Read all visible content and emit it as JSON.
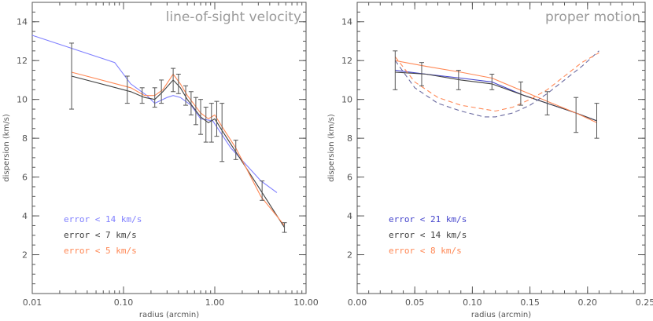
{
  "chart_data": [
    {
      "type": "line",
      "title": "line-of-sight velocity",
      "xlabel": "radius (arcmin)",
      "ylabel": "dispersion (km/s)",
      "xscale": "log",
      "xlim": [
        0.01,
        10.0
      ],
      "ylim": [
        0,
        15
      ],
      "xticks": [
        0.01,
        0.1,
        1.0,
        10.0
      ],
      "xtick_labels": [
        "0.01",
        "0.10",
        "1.00",
        "10.00"
      ],
      "yticks": [
        2,
        4,
        6,
        8,
        10,
        12,
        14
      ],
      "ytick_labels": [
        "2",
        "4",
        "6",
        "8",
        "10",
        "12",
        "14"
      ],
      "legend_position": "bottom-left",
      "series": [
        {
          "name": "error < 14 km/s",
          "color": "#7f7fff",
          "dash": false,
          "x": [
            0.01,
            0.08,
            0.12,
            0.18,
            0.22,
            0.3,
            0.35,
            0.42,
            0.55,
            0.7,
            0.95,
            1.5,
            3.2,
            4.8
          ],
          "y": [
            13.3,
            11.9,
            10.8,
            10.2,
            9.8,
            10.1,
            10.2,
            10.1,
            9.7,
            9.0,
            8.9,
            7.5,
            5.8,
            5.2
          ]
        },
        {
          "name": "error <  7 km/s",
          "color": "#404040",
          "dash": false,
          "x": [
            0.027,
            0.12,
            0.17,
            0.22,
            0.27,
            0.35,
            0.42,
            0.5,
            0.58,
            0.7,
            0.85,
            1.0,
            1.2,
            1.7,
            3.2,
            5.8
          ],
          "y": [
            11.2,
            10.4,
            10.1,
            10.0,
            10.4,
            11.0,
            10.6,
            10.0,
            9.6,
            9.1,
            8.8,
            9.0,
            8.4,
            7.3,
            5.3,
            3.4
          ]
        },
        {
          "name": "error <  5 km/s",
          "color": "#ff8855",
          "dash": false,
          "x": [
            0.027,
            0.12,
            0.17,
            0.22,
            0.27,
            0.35,
            0.42,
            0.5,
            0.58,
            0.7,
            0.85,
            1.0,
            1.2,
            1.7,
            3.2,
            5.8
          ],
          "y": [
            11.4,
            10.6,
            10.2,
            10.2,
            10.5,
            11.3,
            10.8,
            10.2,
            9.8,
            9.3,
            9.0,
            9.2,
            8.6,
            7.5,
            5.0,
            3.5
          ]
        }
      ],
      "error_bars": {
        "x": [
          0.027,
          0.11,
          0.16,
          0.22,
          0.26,
          0.35,
          0.4,
          0.48,
          0.55,
          0.62,
          0.7,
          0.8,
          0.92,
          1.05,
          1.2,
          1.7,
          3.3,
          5.8
        ],
        "y": [
          11.2,
          10.5,
          10.2,
          10.1,
          10.4,
          11.0,
          10.8,
          10.2,
          9.8,
          9.4,
          9.1,
          8.7,
          8.8,
          9.0,
          8.3,
          7.4,
          5.3,
          3.4
        ],
        "err": [
          1.7,
          0.7,
          0.4,
          0.5,
          0.6,
          0.6,
          0.5,
          0.5,
          0.6,
          0.7,
          0.9,
          0.9,
          1.0,
          0.9,
          1.5,
          0.5,
          0.5,
          0.25
        ]
      }
    },
    {
      "type": "line",
      "title": "proper motion",
      "xlabel": "radius (arcmin)",
      "ylabel": "dispersion (km/s)",
      "xlim": [
        0.0,
        0.25
      ],
      "ylim": [
        0,
        15
      ],
      "xticks": [
        0.0,
        0.05,
        0.1,
        0.15,
        0.2,
        0.25
      ],
      "xtick_labels": [
        "0.00",
        "0.05",
        "0.10",
        "0.15",
        "0.20",
        "0.25"
      ],
      "yticks": [
        2,
        4,
        6,
        8,
        10,
        12,
        14
      ],
      "ytick_labels": [
        "2",
        "4",
        "6",
        "8",
        "10",
        "12",
        "14"
      ],
      "legend_position": "bottom-left",
      "series": [
        {
          "name": "error < 21 km/s",
          "color": "#4444cc",
          "dash": false,
          "x": [
            0.033,
            0.06,
            0.09,
            0.117,
            0.145,
            0.165,
            0.19,
            0.208
          ],
          "y": [
            11.5,
            11.3,
            11.1,
            10.9,
            10.2,
            9.8,
            9.3,
            8.9
          ]
        },
        {
          "name": "error < 14 km/s",
          "color": "#404040",
          "dash": false,
          "x": [
            0.033,
            0.06,
            0.09,
            0.117,
            0.145,
            0.165,
            0.19,
            0.208
          ],
          "y": [
            11.4,
            11.3,
            11.0,
            10.8,
            10.2,
            9.8,
            9.3,
            8.9
          ]
        },
        {
          "name": "error <  8 km/s",
          "color": "#ff8855",
          "dash": false,
          "x": [
            0.033,
            0.06,
            0.09,
            0.117,
            0.145,
            0.165,
            0.19,
            0.208
          ],
          "y": [
            12.0,
            11.7,
            11.4,
            11.1,
            10.4,
            9.9,
            9.3,
            8.8
          ]
        },
        {
          "name": "",
          "color": "#6a6aa0",
          "dash": true,
          "x": [
            0.033,
            0.05,
            0.07,
            0.09,
            0.11,
            0.12,
            0.135,
            0.15,
            0.165,
            0.18,
            0.195,
            0.21
          ],
          "y": [
            12.0,
            10.6,
            9.8,
            9.4,
            9.1,
            9.1,
            9.3,
            9.7,
            10.3,
            11.0,
            11.7,
            12.5
          ]
        },
        {
          "name": "",
          "color": "#ff8855",
          "dash": true,
          "x": [
            0.033,
            0.05,
            0.07,
            0.09,
            0.11,
            0.12,
            0.135,
            0.15,
            0.165,
            0.18,
            0.195,
            0.21
          ],
          "y": [
            12.2,
            10.9,
            10.1,
            9.7,
            9.5,
            9.4,
            9.6,
            10.0,
            10.5,
            11.2,
            11.9,
            12.4
          ]
        }
      ],
      "error_bars": {
        "x": [
          0.033,
          0.056,
          0.088,
          0.117,
          0.142,
          0.165,
          0.19,
          0.208
        ],
        "y": [
          11.5,
          11.3,
          11.0,
          10.9,
          10.3,
          9.8,
          9.2,
          8.9
        ],
        "err": [
          1.0,
          0.6,
          0.5,
          0.4,
          0.6,
          0.6,
          0.9,
          0.9
        ]
      }
    }
  ],
  "panels_colors": {
    "axis": "#555555",
    "title": "#9a9a9a",
    "error_bar": "#555555"
  }
}
